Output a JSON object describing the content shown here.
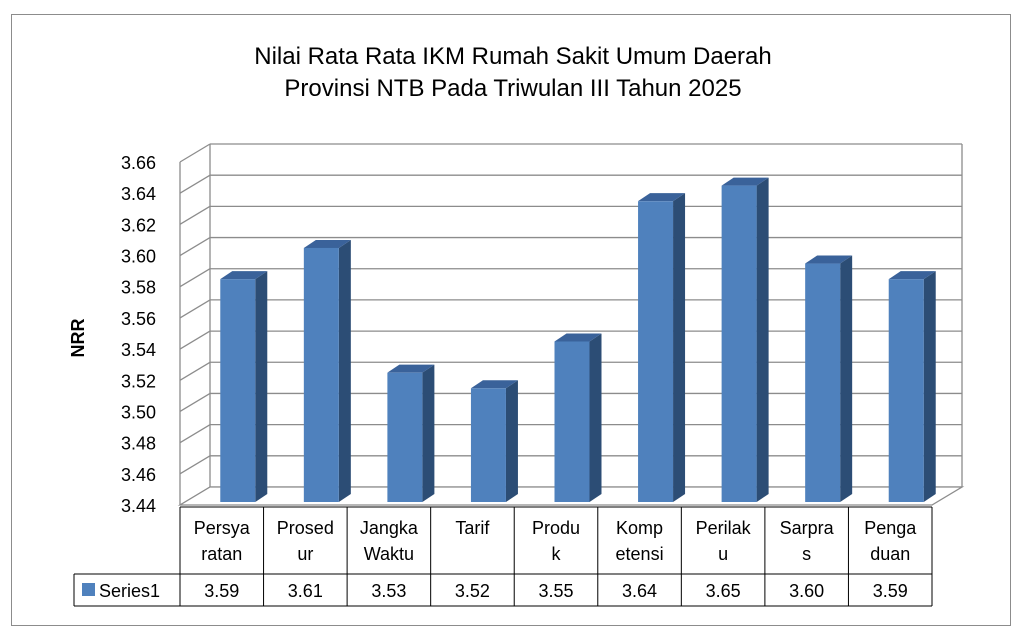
{
  "chart_data": {
    "type": "bar",
    "title": "Nilai Rata Rata IKM Rumah Sakit Umum Daerah Provinsi NTB Pada Triwulan III Tahun 2025",
    "title_lines": [
      "Nilai Rata Rata IKM Rumah Sakit Umum Daerah",
      "Provinsi NTB Pada Triwulan III Tahun 2025"
    ],
    "ylabel": "NRR",
    "xlabel": "",
    "ylim": [
      3.44,
      3.66
    ],
    "yticks": [
      "3.44",
      "3.46",
      "3.48",
      "3.50",
      "3.52",
      "3.54",
      "3.56",
      "3.58",
      "3.60",
      "3.62",
      "3.64",
      "3.66"
    ],
    "categories": [
      [
        "Persya",
        "ratan"
      ],
      [
        "Prosed",
        "ur"
      ],
      [
        "Jangka",
        "Waktu"
      ],
      [
        "Tarif"
      ],
      [
        "Produ",
        "k"
      ],
      [
        "Komp",
        "etensi"
      ],
      [
        "Perilak",
        "u"
      ],
      [
        "Sarpra",
        "s"
      ],
      [
        "Penga",
        "duan"
      ]
    ],
    "series": [
      {
        "name": "Series1",
        "values": [
          3.59,
          3.61,
          3.53,
          3.52,
          3.55,
          3.64,
          3.65,
          3.6,
          3.59
        ],
        "value_labels": [
          "3.59",
          "3.61",
          "3.53",
          "3.52",
          "3.55",
          "3.64",
          "3.65",
          "3.60",
          "3.59"
        ]
      }
    ],
    "grid": true,
    "legend": "data-table-left",
    "colors": {
      "bar_front": "#4f81bd",
      "bar_side": "#2c4d75",
      "bar_top": "#3a629a",
      "grid": "#8c8c8c"
    }
  }
}
